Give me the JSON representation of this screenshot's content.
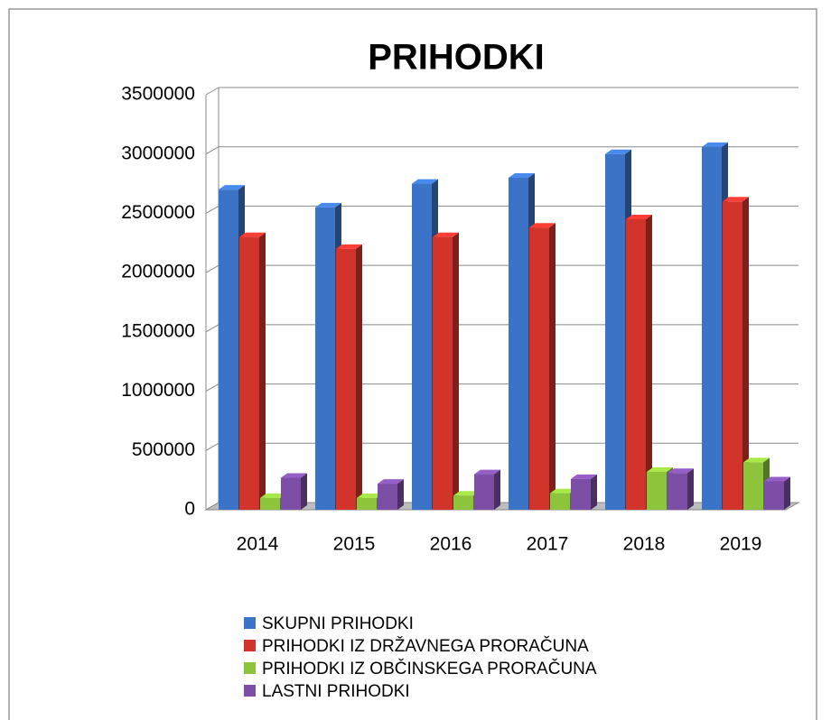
{
  "chart_data": {
    "type": "bar",
    "title": "PRIHODKI",
    "categories": [
      "2014",
      "2015",
      "2016",
      "2017",
      "2018",
      "2019"
    ],
    "series": [
      {
        "name": "SKUPNI PRIHODKI",
        "color": "#3b74c6",
        "values": [
          2700000,
          2550000,
          2750000,
          2800000,
          3000000,
          3060000
        ]
      },
      {
        "name": "PRIHODKI IZ DRŽAVNEGA PRORAČUNA",
        "color": "#d2342c",
        "values": [
          2300000,
          2200000,
          2300000,
          2380000,
          2450000,
          2600000
        ]
      },
      {
        "name": "PRIHODKI IZ OBČINSKEGA PRORAČUNA",
        "color": "#8cc43c",
        "values": [
          100000,
          100000,
          120000,
          140000,
          320000,
          400000
        ]
      },
      {
        "name": "LASTNI PRIHODKI",
        "color": "#7d4ea6",
        "values": [
          270000,
          220000,
          300000,
          260000,
          310000,
          240000
        ]
      }
    ],
    "ylim": [
      0,
      3500000
    ],
    "yticks": [
      0,
      500000,
      1000000,
      1500000,
      2000000,
      2500000,
      3000000,
      3500000
    ],
    "grid": true,
    "legend": "bottom"
  }
}
